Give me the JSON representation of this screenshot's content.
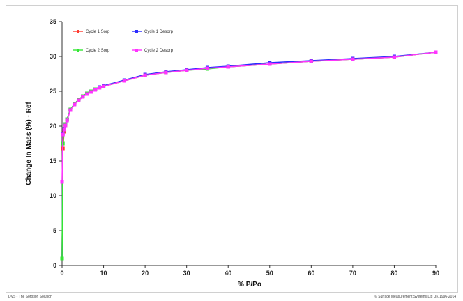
{
  "chart_data": {
    "type": "line",
    "title": "",
    "xlabel": "% P/Po",
    "ylabel": "Change In Mass (%) - Ref",
    "xlim": [
      0,
      90
    ],
    "ylim": [
      0,
      35
    ],
    "xticks": [
      0,
      10,
      20,
      30,
      40,
      50,
      60,
      70,
      80,
      90
    ],
    "yticks": [
      0,
      5,
      10,
      15,
      20,
      25,
      30,
      35
    ],
    "grid": false,
    "legend_position": "top-left",
    "series": [
      {
        "name": "Cycle 1 Sorp",
        "color": "#ff3b30",
        "x": [
          0,
          0.2,
          0.5,
          0.8,
          1.2,
          2,
          3,
          4,
          5,
          6,
          7,
          8,
          9,
          10,
          15,
          20,
          25,
          30,
          35,
          40,
          50,
          60,
          70,
          80,
          90
        ],
        "y": [
          1.0,
          16.8,
          19.2,
          20.1,
          20.9,
          22.3,
          23.2,
          23.8,
          24.3,
          24.7,
          25.0,
          25.3,
          25.5,
          25.7,
          26.5,
          27.3,
          27.7,
          28.0,
          28.3,
          28.5,
          28.9,
          29.3,
          29.6,
          29.9,
          30.6
        ]
      },
      {
        "name": "Cycle 1 Desorp",
        "color": "#2b2bff",
        "x": [
          90,
          80,
          70,
          60,
          50,
          40,
          35,
          30,
          25,
          20,
          15,
          10,
          9,
          8,
          7,
          6,
          5,
          4,
          3,
          2,
          1.2,
          0.8,
          0.5,
          0.2,
          0
        ],
        "y": [
          30.6,
          30.0,
          29.7,
          29.4,
          29.1,
          28.6,
          28.4,
          28.1,
          27.8,
          27.4,
          26.6,
          25.8,
          25.6,
          25.3,
          25.0,
          24.7,
          24.3,
          23.8,
          23.2,
          22.4,
          21.0,
          20.3,
          19.6,
          18.9,
          1.0
        ]
      },
      {
        "name": "Cycle 2 Sorp",
        "color": "#33e633",
        "x": [
          0,
          0.2,
          0.5,
          0.8,
          1.2,
          2,
          3,
          4,
          5,
          6,
          7,
          8,
          9,
          10,
          15,
          20,
          25,
          30,
          35,
          40,
          50,
          60,
          70,
          80,
          90
        ],
        "y": [
          1.0,
          17.5,
          19.5,
          20.3,
          21.0,
          22.4,
          23.2,
          23.8,
          24.3,
          24.7,
          25.0,
          25.3,
          25.5,
          25.7,
          26.5,
          27.3,
          27.7,
          28.0,
          28.2,
          28.5,
          28.9,
          29.3,
          29.6,
          29.9,
          30.6
        ]
      },
      {
        "name": "Cycle 2 Desorp",
        "color": "#ff33ff",
        "x": [
          90,
          80,
          70,
          60,
          50,
          40,
          35,
          30,
          25,
          20,
          15,
          10,
          9,
          8,
          7,
          6,
          5,
          4,
          3,
          2,
          1.2,
          0.8,
          0.5,
          0.2,
          0
        ],
        "y": [
          30.6,
          29.9,
          29.6,
          29.3,
          28.9,
          28.5,
          28.3,
          28.0,
          27.7,
          27.3,
          26.5,
          25.7,
          25.5,
          25.2,
          24.9,
          24.6,
          24.2,
          23.7,
          23.1,
          22.3,
          20.8,
          20.1,
          19.5,
          18.8,
          12.0
        ]
      }
    ]
  },
  "footer": {
    "left": "DVS - The Sorption Solution",
    "right": "© Surface Measurement Systems Ltd UK 1996-2014"
  }
}
